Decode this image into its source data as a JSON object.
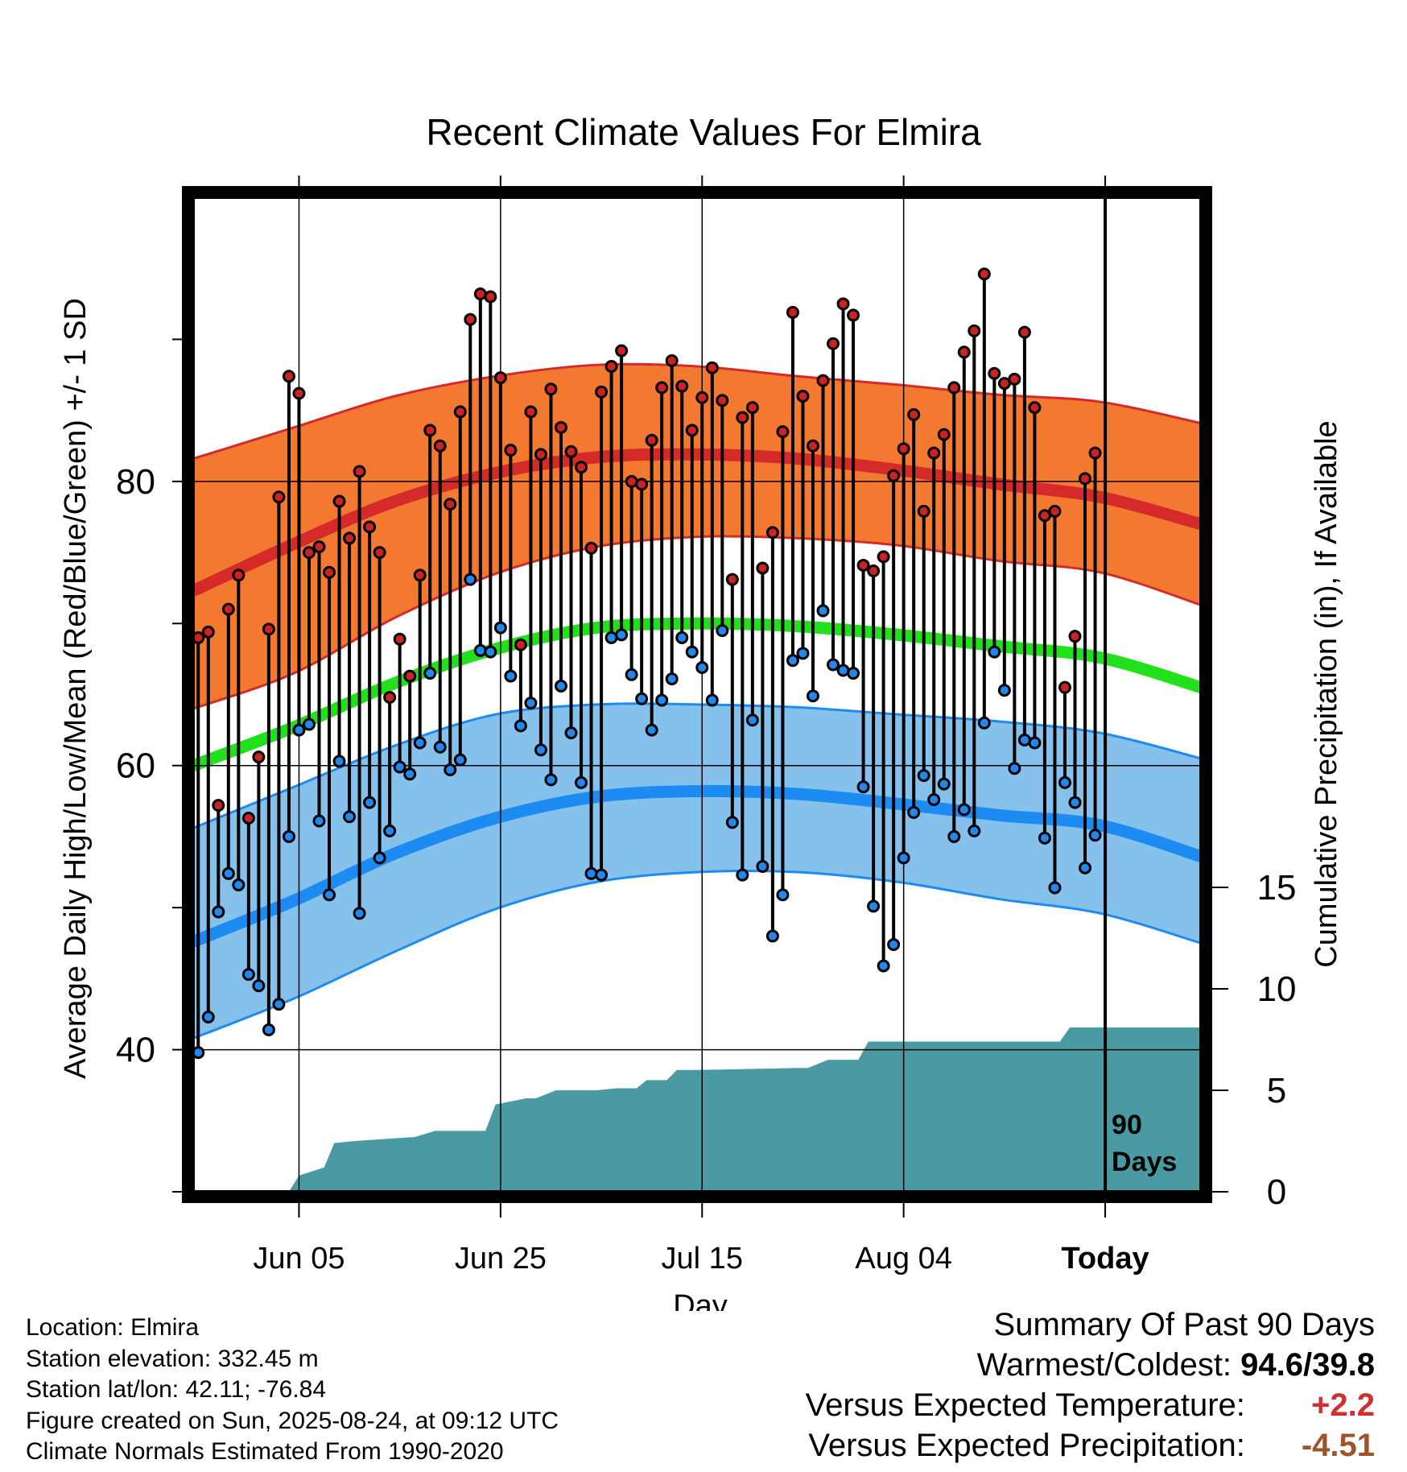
{
  "chart_data": {
    "type": "line",
    "title": "Recent Climate Values For Elmira",
    "xlabel": "Day",
    "ylabel_left": "Average Daily High/Low/Mean (Red/Blue/Green) +/- 1 SD",
    "ylabel_right": "Cumulative Precipitation (in), If Available",
    "x_tick_labels": [
      "Jun 05",
      "Jun 25",
      "Jul 15",
      "Aug 04",
      "Today"
    ],
    "y_left_ticks": [
      40,
      60,
      80
    ],
    "y_left_range": [
      30,
      100
    ],
    "y_right_ticks": [
      0,
      5,
      10,
      15
    ],
    "y_right_range": [
      0,
      49
    ],
    "grid": true,
    "today_marker_label": [
      "90",
      "Days"
    ],
    "colors": {
      "high_band": "#f47930",
      "high_line": "#d42a2a",
      "low_band": "#85c1ea",
      "low_line": "#1c8bf2",
      "mean_line": "#22e01c",
      "precip": "#4a9aa4",
      "high_dot": "#cc2222",
      "low_dot": "#2288ee"
    },
    "normals": {
      "day_index": [
        0,
        10,
        20,
        30,
        40,
        50,
        60,
        70,
        80,
        90,
        100
      ],
      "mean_high": [
        72.3,
        75.6,
        78.6,
        80.6,
        81.7,
        81.9,
        81.6,
        80.8,
        79.8,
        78.9,
        77.0
      ],
      "high_sd_upper": [
        81.6,
        83.8,
        86.0,
        87.4,
        88.2,
        88.1,
        87.4,
        86.8,
        86.1,
        85.6,
        84.1
      ],
      "high_sd_lower": [
        64.0,
        66.5,
        70.4,
        73.5,
        75.4,
        76.1,
        76.0,
        75.5,
        74.4,
        73.6,
        71.3
      ],
      "mean_avg": [
        60.0,
        62.7,
        65.8,
        68.2,
        69.7,
        70.0,
        69.8,
        69.2,
        68.4,
        67.6,
        65.5
      ],
      "mean_low": [
        47.6,
        50.5,
        53.8,
        56.3,
        57.8,
        58.2,
        58.0,
        57.3,
        56.5,
        55.8,
        53.6
      ],
      "low_sd_upper": [
        55.6,
        58.5,
        61.4,
        63.6,
        64.3,
        64.3,
        64.1,
        63.6,
        63.1,
        62.3,
        60.5
      ],
      "low_sd_lower": [
        40.8,
        43.6,
        46.9,
        49.9,
        51.8,
        52.5,
        52.5,
        51.8,
        50.6,
        49.6,
        47.5
      ]
    },
    "daily": {
      "day_index": [
        0,
        1,
        2,
        3,
        4,
        5,
        6,
        7,
        8,
        9,
        10,
        11,
        12,
        13,
        14,
        15,
        16,
        17,
        18,
        19,
        20,
        21,
        22,
        23,
        24,
        25,
        26,
        27,
        28,
        29,
        30,
        31,
        32,
        33,
        34,
        35,
        36,
        37,
        38,
        39,
        40,
        41,
        42,
        43,
        44,
        45,
        46,
        47,
        48,
        49,
        50,
        51,
        52,
        53,
        54,
        55,
        56,
        57,
        58,
        59,
        60,
        61,
        62,
        63,
        64,
        65,
        66,
        67,
        68,
        69,
        70,
        71,
        72,
        73,
        74,
        75,
        76,
        77,
        78,
        79,
        80,
        81,
        82,
        83,
        84,
        85,
        86,
        87,
        88,
        89
      ],
      "high": [
        69.0,
        69.4,
        57.2,
        71.0,
        73.4,
        56.3,
        60.6,
        69.6,
        78.9,
        87.4,
        86.2,
        75.0,
        75.4,
        73.6,
        78.6,
        76.0,
        80.7,
        76.8,
        75.0,
        64.8,
        68.9,
        66.3,
        73.4,
        83.6,
        82.5,
        78.4,
        84.9,
        91.4,
        93.2,
        93.0,
        87.3,
        82.2,
        68.5,
        84.9,
        81.9,
        86.5,
        83.8,
        82.1,
        81.0,
        75.3,
        86.3,
        88.1,
        89.2,
        80.0,
        79.8,
        82.9,
        86.6,
        88.5,
        86.7,
        83.6,
        85.9,
        88.0,
        85.7,
        73.1,
        84.5,
        85.2,
        73.9,
        76.4,
        83.5,
        91.9,
        86.0,
        82.5,
        87.1,
        89.7,
        92.5,
        91.7,
        74.1,
        73.7,
        74.7,
        80.4,
        82.3,
        84.7,
        77.9,
        82.0,
        83.3,
        86.6,
        89.1,
        90.6,
        94.6,
        87.6,
        86.9,
        87.2,
        90.5,
        85.2,
        77.6,
        77.9,
        65.5,
        69.1,
        80.2,
        82.0
      ],
      "low": [
        39.8,
        42.3,
        49.7,
        52.4,
        51.6,
        45.3,
        44.5,
        41.4,
        43.2,
        55.0,
        62.5,
        62.9,
        56.1,
        50.9,
        60.3,
        56.4,
        49.6,
        57.4,
        53.5,
        55.4,
        59.9,
        59.4,
        61.6,
        66.5,
        61.3,
        59.7,
        60.4,
        73.1,
        68.1,
        68.0,
        69.7,
        66.3,
        62.8,
        64.4,
        61.1,
        59.0,
        65.6,
        62.3,
        58.8,
        52.4,
        52.3,
        69.0,
        69.2,
        66.4,
        64.7,
        62.5,
        64.6,
        66.1,
        69.0,
        68.0,
        66.9,
        64.6,
        69.5,
        56.0,
        52.3,
        63.2,
        52.9,
        48.0,
        50.9,
        67.4,
        67.9,
        64.9,
        70.9,
        67.1,
        66.7,
        66.5,
        58.5,
        50.1,
        45.9,
        47.4,
        53.5,
        56.7,
        59.3,
        57.6,
        58.7,
        55.0,
        56.9,
        55.4,
        63.0,
        68.0,
        65.3,
        59.8,
        61.8,
        61.6,
        54.9,
        51.4,
        58.8,
        57.4,
        52.8,
        55.1
      ]
    },
    "precip": {
      "day_index": [
        0,
        9.5,
        10.5,
        13,
        14,
        16,
        22,
        24,
        25,
        29,
        30,
        31,
        33,
        34,
        36,
        40,
        42,
        44,
        45,
        47,
        48,
        50,
        60,
        61,
        63,
        66,
        67,
        86,
        87,
        99.9
      ],
      "cumulative": [
        0,
        0,
        0.8,
        1.2,
        2.4,
        2.5,
        2.7,
        3.0,
        3.0,
        3.0,
        4.3,
        4.4,
        4.6,
        4.6,
        5.0,
        5.0,
        5.1,
        5.1,
        5.5,
        5.5,
        6.0,
        6.0,
        6.1,
        6.1,
        6.5,
        6.5,
        7.4,
        7.4,
        8.1,
        8.1
      ]
    }
  },
  "info": {
    "location": "Location: Elmira",
    "elevation": "Station elevation: 332.45 m",
    "latlon": "Station lat/lon: 42.11; -76.84",
    "created": "Figure created on Sun, 2025-08-24, at 09:12 UTC",
    "normals": "Climate Normals Estimated From 1990-2020"
  },
  "summary": {
    "title": "Summary Of Past 90 Days",
    "warmest_label": "Warmest/Coldest:",
    "warmest_value": "94.6/39.8",
    "temp_label": "Versus Expected Temperature:",
    "temp_value": "+2.2",
    "precip_label": "Versus Expected Precipitation:",
    "precip_value": "-4.51"
  }
}
